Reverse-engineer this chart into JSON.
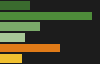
{
  "bars": [
    {
      "value": 30,
      "color": "#3a6b2e"
    },
    {
      "value": 92,
      "color": "#4e8c3a"
    },
    {
      "value": 40,
      "color": "#7aaa6a"
    },
    {
      "value": 25,
      "color": "#a8c898"
    },
    {
      "value": 60,
      "color": "#e07b18"
    },
    {
      "value": 22,
      "color": "#f0c030"
    }
  ],
  "background_color": "#1c1c1c",
  "xlim": [
    0,
    100
  ]
}
